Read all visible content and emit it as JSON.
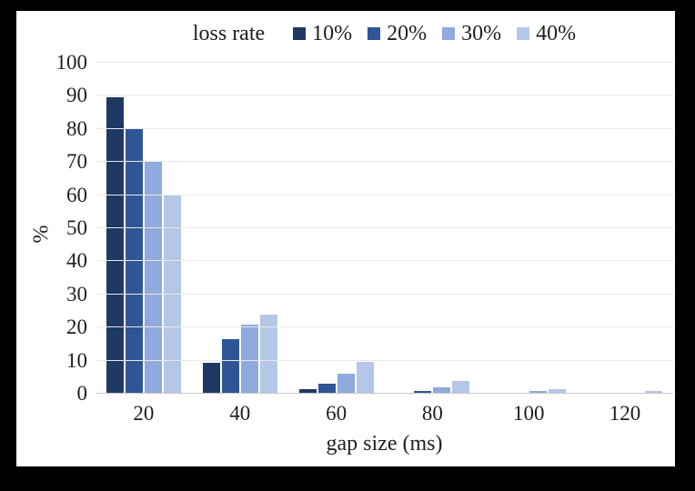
{
  "window": {
    "frame_color": "#000000",
    "chart_background": "#ffffff",
    "text_color": "#1f1f1f",
    "gridline_color": "#e9e9e9",
    "axis_line_color": "#c8c8c8"
  },
  "legend": {
    "title": "loss rate"
  },
  "chart_data": {
    "type": "bar",
    "title": "",
    "categories": [
      "20",
      "40",
      "60",
      "80",
      "100",
      "120"
    ],
    "series": [
      {
        "name": "10%",
        "color": "#1F3864",
        "values": [
          89.6,
          9.3,
          1.4,
          0.2,
          0,
          0
        ]
      },
      {
        "name": "20%",
        "color": "#2F5597",
        "values": [
          80,
          16.4,
          3.1,
          0.9,
          0.4,
          0
        ]
      },
      {
        "name": "30%",
        "color": "#8FAADC",
        "values": [
          70,
          21,
          6.1,
          2,
          0.8,
          0.3
        ]
      },
      {
        "name": "40%",
        "color": "#B4C7E7",
        "values": [
          60,
          24,
          9.7,
          3.9,
          1.5,
          0.7
        ]
      }
    ],
    "xlabel": "gap size (ms)",
    "ylabel": "%",
    "ylim": [
      0,
      100
    ],
    "ytick_step": 10,
    "yticks": [
      "0",
      "10",
      "20",
      "30",
      "40",
      "50",
      "60",
      "70",
      "80",
      "90",
      "100"
    ],
    "grid": true,
    "legend_position": "top"
  }
}
